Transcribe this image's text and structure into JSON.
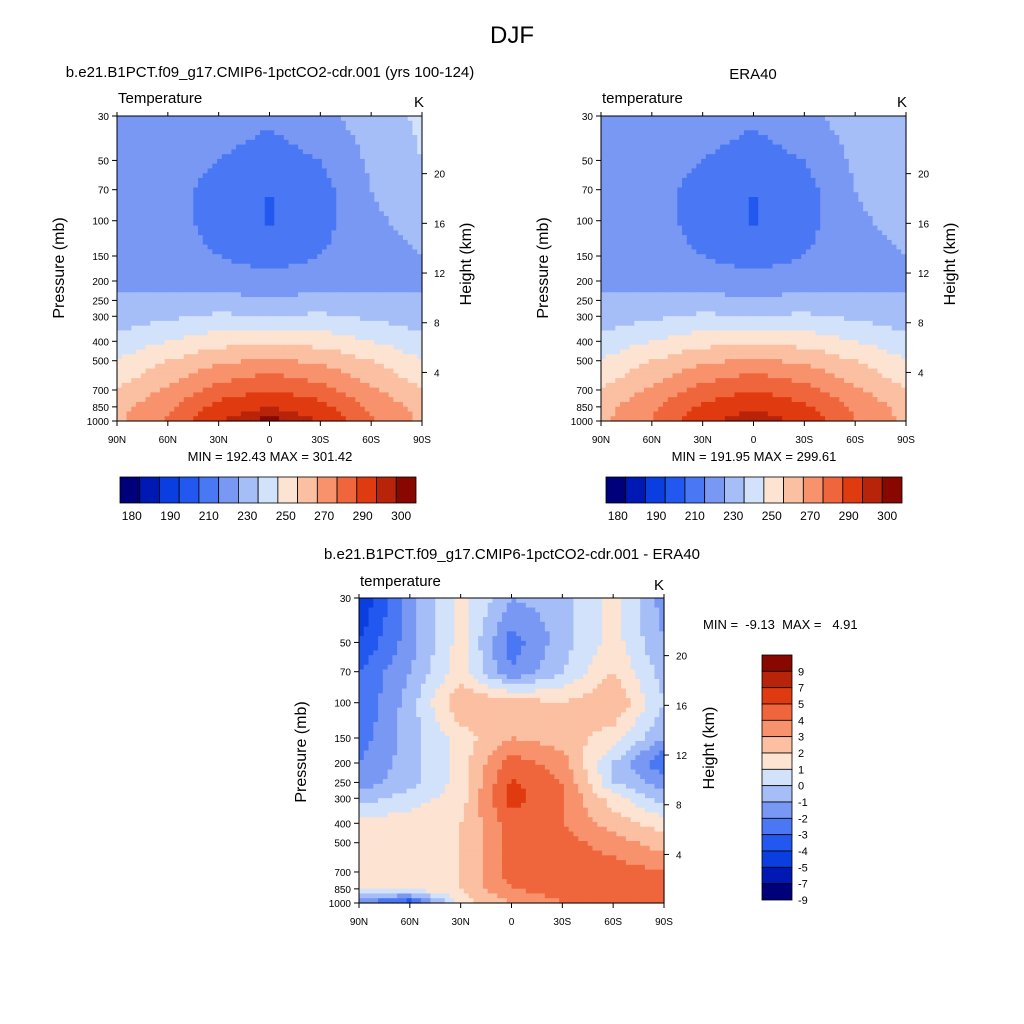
{
  "figure": {
    "title": "DJF"
  },
  "axes_common": {
    "pressure_ticks": [
      30,
      50,
      70,
      100,
      150,
      200,
      250,
      300,
      400,
      500,
      700,
      850,
      1000
    ],
    "latitude_ticks": [
      "90N",
      "60N",
      "30N",
      "0",
      "30S",
      "60S",
      "90S"
    ],
    "latitude_values": [
      90,
      60,
      30,
      0,
      -30,
      -60,
      -90
    ],
    "height_ticks": [
      4,
      8,
      12,
      16,
      20
    ],
    "ylabel_left": "Pressure (mb)",
    "ylabel_right": "Height (km)"
  },
  "panels": {
    "model": {
      "title": "b.e21.B1PCT.f09_g17.CMIP6-1pctCO2-cdr.001 (yrs 100-124)",
      "variable": "Temperature",
      "units": "K",
      "stats": "MIN = 192.43  MAX = 301.42"
    },
    "obs": {
      "title": "ERA40",
      "variable": "temperature",
      "units": "K",
      "stats": "MIN = 191.95  MAX = 299.61"
    },
    "diff": {
      "title": "b.e21.B1PCT.f09_g17.CMIP6-1pctCO2-cdr.001 - ERA40",
      "variable": "temperature",
      "units": "K",
      "stats": "MIN =  -9.13  MAX =   4.91"
    }
  },
  "colorbars": {
    "temp": {
      "colors": [
        "#00007a",
        "#0018b4",
        "#0a3ee0",
        "#2358f0",
        "#4a78f4",
        "#7898f4",
        "#a6bef7",
        "#d2e2fb",
        "#fde3d1",
        "#fbbfa1",
        "#f7926c",
        "#f0663c",
        "#e03a10",
        "#b8240a",
        "#880800"
      ],
      "labels": [
        "180",
        "190",
        "210",
        "230",
        "250",
        "270",
        "290",
        "300"
      ]
    },
    "diff": {
      "colors": [
        "#00007a",
        "#0018b4",
        "#0a3ee0",
        "#2358f0",
        "#4a78f4",
        "#7898f4",
        "#a6bef7",
        "#d2e2fb",
        "#fde3d1",
        "#fbbfa1",
        "#f7926c",
        "#f0663c",
        "#e03a10",
        "#b8240a",
        "#880800"
      ],
      "labels": [
        "-9",
        "-7",
        "-5",
        "-4",
        "-3",
        "-2",
        "-1",
        "0",
        "1",
        "2",
        "3",
        "4",
        "5",
        "7",
        "9"
      ]
    }
  },
  "chart_data": [
    {
      "type": "heatmap",
      "title": "b.e21.B1PCT.f09_g17.CMIP6-1pctCO2-cdr.001 (yrs 100-124)",
      "variable": "Temperature",
      "units": "K",
      "xlabel": "",
      "ylabel": "Pressure (mb)",
      "ylabel_right": "Height (km)",
      "x": [
        90,
        60,
        30,
        0,
        -30,
        -60,
        -90
      ],
      "y": [
        30,
        50,
        70,
        100,
        150,
        200,
        250,
        300,
        400,
        500,
        700,
        850,
        1000
      ],
      "z": [
        [
          214,
          218,
          216,
          212,
          218,
          224,
          232
        ],
        [
          214,
          216,
          210,
          205,
          210,
          222,
          230
        ],
        [
          214,
          214,
          206,
          200,
          206,
          220,
          228
        ],
        [
          216,
          214,
          206,
          199,
          206,
          218,
          224
        ],
        [
          216,
          214,
          210,
          205,
          210,
          216,
          220
        ],
        [
          218,
          216,
          216,
          214,
          216,
          218,
          216
        ],
        [
          222,
          222,
          222,
          222,
          222,
          222,
          222
        ],
        [
          224,
          228,
          232,
          230,
          232,
          228,
          224
        ],
        [
          234,
          240,
          246,
          248,
          246,
          240,
          234
        ],
        [
          240,
          250,
          258,
          262,
          258,
          250,
          240
        ],
        [
          250,
          262,
          274,
          280,
          274,
          262,
          250
        ],
        [
          256,
          268,
          284,
          290,
          284,
          268,
          256
        ],
        [
          258,
          272,
          290,
          298,
          290,
          272,
          258
        ]
      ],
      "levels": [
        180,
        185,
        190,
        200,
        210,
        220,
        230,
        240,
        250,
        260,
        270,
        280,
        290,
        295,
        300
      ],
      "min": 192.43,
      "max": 301.42
    },
    {
      "type": "heatmap",
      "title": "ERA40",
      "variable": "temperature",
      "units": "K",
      "xlabel": "",
      "ylabel": "Pressure (mb)",
      "ylabel_right": "Height (km)",
      "x": [
        90,
        60,
        30,
        0,
        -30,
        -60,
        -90
      ],
      "y": [
        30,
        50,
        70,
        100,
        150,
        200,
        250,
        300,
        400,
        500,
        700,
        850,
        1000
      ],
      "z": [
        [
          214,
          218,
          216,
          212,
          218,
          224,
          230
        ],
        [
          214,
          216,
          210,
          205,
          210,
          222,
          230
        ],
        [
          214,
          214,
          206,
          200,
          206,
          220,
          228
        ],
        [
          216,
          214,
          206,
          199,
          206,
          218,
          224
        ],
        [
          216,
          214,
          210,
          205,
          210,
          216,
          220
        ],
        [
          218,
          216,
          216,
          214,
          216,
          218,
          216
        ],
        [
          222,
          222,
          222,
          222,
          222,
          222,
          222
        ],
        [
          224,
          228,
          232,
          230,
          232,
          228,
          224
        ],
        [
          234,
          240,
          246,
          248,
          246,
          240,
          234
        ],
        [
          240,
          250,
          258,
          262,
          258,
          250,
          240
        ],
        [
          250,
          262,
          274,
          280,
          274,
          262,
          250
        ],
        [
          256,
          268,
          282,
          288,
          282,
          268,
          256
        ],
        [
          258,
          270,
          288,
          296,
          288,
          270,
          258
        ]
      ],
      "levels": [
        180,
        185,
        190,
        200,
        210,
        220,
        230,
        240,
        250,
        260,
        270,
        280,
        290,
        295,
        300
      ],
      "min": 191.95,
      "max": 299.61
    },
    {
      "type": "heatmap",
      "title": "b.e21.B1PCT.f09_g17.CMIP6-1pctCO2-cdr.001 - ERA40",
      "variable": "temperature",
      "units": "K",
      "xlabel": "",
      "ylabel": "Pressure (mb)",
      "ylabel_right": "Height (km)",
      "x": [
        90,
        60,
        30,
        0,
        -30,
        -60,
        -90
      ],
      "y": [
        30,
        50,
        70,
        100,
        150,
        200,
        250,
        300,
        400,
        500,
        700,
        850,
        1000
      ],
      "z": [
        [
          -6.0,
          -2.5,
          0.5,
          -2.0,
          -1.5,
          0.5,
          -2.5
        ],
        [
          -5.0,
          -2.5,
          0.5,
          -3.5,
          -1.5,
          0.5,
          -2.0
        ],
        [
          -4.0,
          -2.0,
          0.5,
          -3.0,
          -1.0,
          1.0,
          -1.5
        ],
        [
          -4.0,
          -1.5,
          2.0,
          1.5,
          1.0,
          2.0,
          -1.0
        ],
        [
          -3.5,
          -1.5,
          0.5,
          2.0,
          1.5,
          0.5,
          -2.0
        ],
        [
          -3.0,
          -1.5,
          0.5,
          3.5,
          2.5,
          -1.0,
          -4.0
        ],
        [
          -2.5,
          -1.5,
          0.5,
          4.2,
          3.0,
          -1.0,
          -2.5
        ],
        [
          -1.5,
          -0.5,
          0.5,
          4.5,
          3.0,
          0.5,
          -1.5
        ],
        [
          0.5,
          0.5,
          1.0,
          3.5,
          3.0,
          1.5,
          0.5
        ],
        [
          0.5,
          0.5,
          1.0,
          3.5,
          3.5,
          2.5,
          1.5
        ],
        [
          1.0,
          0.5,
          1.0,
          3.5,
          3.5,
          3.5,
          3.0
        ],
        [
          0.5,
          0.5,
          1.0,
          3.0,
          3.5,
          3.5,
          3.5
        ],
        [
          -3.0,
          -5.0,
          0.5,
          2.0,
          3.0,
          3.0,
          3.0
        ]
      ],
      "levels": [
        -9,
        -7,
        -5,
        -4,
        -3,
        -2,
        -1,
        0,
        1,
        2,
        3,
        4,
        5,
        7,
        9
      ],
      "min": -9.13,
      "max": 4.91
    }
  ]
}
